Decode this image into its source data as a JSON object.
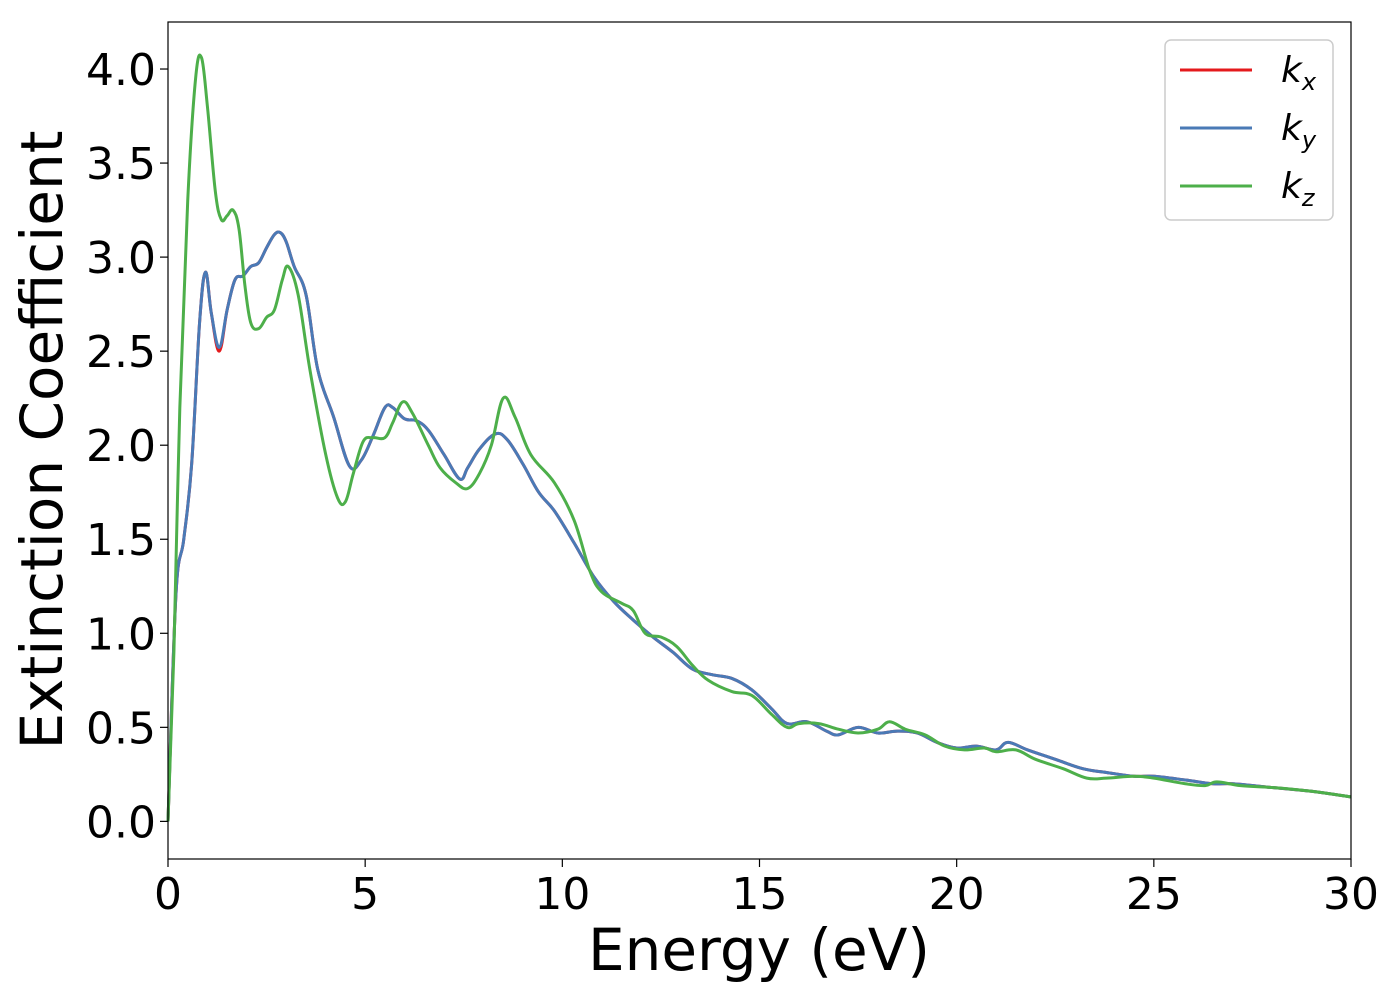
{
  "chart_data": {
    "type": "line",
    "title": "",
    "xlabel": "Energy (eV)",
    "ylabel": "Extinction Coefficient",
    "xlim": [
      0,
      30
    ],
    "ylim": [
      -0.2,
      4.25
    ],
    "xticks": [
      0,
      5,
      10,
      15,
      20,
      25,
      30
    ],
    "xtick_labels": [
      "0",
      "5",
      "10",
      "15",
      "20",
      "25",
      "30"
    ],
    "yticks": [
      0.0,
      0.5,
      1.0,
      1.5,
      2.0,
      2.5,
      3.0,
      3.5,
      4.0
    ],
    "ytick_labels": [
      "0.0",
      "0.5",
      "1.0",
      "1.5",
      "2.0",
      "2.5",
      "3.0",
      "3.5",
      "4.0"
    ],
    "grid": false,
    "legend_position": "top-right",
    "series": [
      {
        "name": "k_x",
        "legend_base": "k",
        "legend_sub": "x",
        "color": "#e41a1c",
        "points": [
          [
            0,
            0
          ],
          [
            0.2,
            1.2
          ],
          [
            0.4,
            1.5
          ],
          [
            0.6,
            1.9
          ],
          [
            0.8,
            2.65
          ],
          [
            0.95,
            2.92
          ],
          [
            1.1,
            2.7
          ],
          [
            1.3,
            2.5
          ],
          [
            1.5,
            2.72
          ],
          [
            1.7,
            2.88
          ],
          [
            1.9,
            2.9
          ],
          [
            2.1,
            2.95
          ],
          [
            2.3,
            2.97
          ],
          [
            2.5,
            3.05
          ],
          [
            2.7,
            3.12
          ],
          [
            2.85,
            3.13
          ],
          [
            3.0,
            3.08
          ],
          [
            3.2,
            2.95
          ],
          [
            3.5,
            2.8
          ],
          [
            3.8,
            2.4
          ],
          [
            4.2,
            2.15
          ],
          [
            4.6,
            1.89
          ],
          [
            4.9,
            1.92
          ],
          [
            5.2,
            2.05
          ],
          [
            5.5,
            2.2
          ],
          [
            5.7,
            2.2
          ],
          [
            6.0,
            2.14
          ],
          [
            6.3,
            2.13
          ],
          [
            6.6,
            2.08
          ],
          [
            7.0,
            1.95
          ],
          [
            7.4,
            1.82
          ],
          [
            7.6,
            1.88
          ],
          [
            7.9,
            1.98
          ],
          [
            8.3,
            2.06
          ],
          [
            8.6,
            2.03
          ],
          [
            9.0,
            1.9
          ],
          [
            9.4,
            1.75
          ],
          [
            9.8,
            1.65
          ],
          [
            10.3,
            1.48
          ],
          [
            10.8,
            1.3
          ],
          [
            11.3,
            1.17
          ],
          [
            11.8,
            1.07
          ],
          [
            12.3,
            0.98
          ],
          [
            12.8,
            0.9
          ],
          [
            13.3,
            0.81
          ],
          [
            13.8,
            0.78
          ],
          [
            14.3,
            0.76
          ],
          [
            14.8,
            0.7
          ],
          [
            15.3,
            0.6
          ],
          [
            15.7,
            0.52
          ],
          [
            16.2,
            0.53
          ],
          [
            16.7,
            0.48
          ],
          [
            17.0,
            0.46
          ],
          [
            17.5,
            0.5
          ],
          [
            18.0,
            0.47
          ],
          [
            18.5,
            0.48
          ],
          [
            19.0,
            0.47
          ],
          [
            19.5,
            0.42
          ],
          [
            20.0,
            0.39
          ],
          [
            20.5,
            0.4
          ],
          [
            21.0,
            0.38
          ],
          [
            21.3,
            0.42
          ],
          [
            21.8,
            0.38
          ],
          [
            22.5,
            0.33
          ],
          [
            23.2,
            0.28
          ],
          [
            23.8,
            0.26
          ],
          [
            24.5,
            0.24
          ],
          [
            25.0,
            0.24
          ],
          [
            25.8,
            0.22
          ],
          [
            26.5,
            0.2
          ],
          [
            27.0,
            0.2
          ],
          [
            28.0,
            0.18
          ],
          [
            29.0,
            0.16
          ],
          [
            30.0,
            0.13
          ]
        ]
      },
      {
        "name": "k_y",
        "legend_base": "k",
        "legend_sub": "y",
        "color": "#4a7ab6",
        "points": [
          [
            0,
            0
          ],
          [
            0.2,
            1.2
          ],
          [
            0.4,
            1.5
          ],
          [
            0.6,
            1.9
          ],
          [
            0.8,
            2.65
          ],
          [
            0.95,
            2.92
          ],
          [
            1.1,
            2.7
          ],
          [
            1.3,
            2.52
          ],
          [
            1.5,
            2.72
          ],
          [
            1.7,
            2.88
          ],
          [
            1.9,
            2.9
          ],
          [
            2.1,
            2.95
          ],
          [
            2.3,
            2.97
          ],
          [
            2.5,
            3.05
          ],
          [
            2.7,
            3.12
          ],
          [
            2.85,
            3.13
          ],
          [
            3.0,
            3.08
          ],
          [
            3.2,
            2.95
          ],
          [
            3.5,
            2.8
          ],
          [
            3.8,
            2.4
          ],
          [
            4.2,
            2.15
          ],
          [
            4.6,
            1.89
          ],
          [
            4.9,
            1.92
          ],
          [
            5.2,
            2.05
          ],
          [
            5.5,
            2.2
          ],
          [
            5.7,
            2.2
          ],
          [
            6.0,
            2.14
          ],
          [
            6.3,
            2.13
          ],
          [
            6.6,
            2.08
          ],
          [
            7.0,
            1.95
          ],
          [
            7.4,
            1.82
          ],
          [
            7.6,
            1.88
          ],
          [
            7.9,
            1.98
          ],
          [
            8.3,
            2.06
          ],
          [
            8.6,
            2.03
          ],
          [
            9.0,
            1.9
          ],
          [
            9.4,
            1.75
          ],
          [
            9.8,
            1.65
          ],
          [
            10.3,
            1.48
          ],
          [
            10.8,
            1.3
          ],
          [
            11.3,
            1.17
          ],
          [
            11.8,
            1.07
          ],
          [
            12.3,
            0.98
          ],
          [
            12.8,
            0.9
          ],
          [
            13.3,
            0.81
          ],
          [
            13.8,
            0.78
          ],
          [
            14.3,
            0.76
          ],
          [
            14.8,
            0.7
          ],
          [
            15.3,
            0.6
          ],
          [
            15.7,
            0.52
          ],
          [
            16.2,
            0.53
          ],
          [
            16.7,
            0.48
          ],
          [
            17.0,
            0.46
          ],
          [
            17.5,
            0.5
          ],
          [
            18.0,
            0.47
          ],
          [
            18.5,
            0.48
          ],
          [
            19.0,
            0.47
          ],
          [
            19.5,
            0.42
          ],
          [
            20.0,
            0.39
          ],
          [
            20.5,
            0.4
          ],
          [
            21.0,
            0.38
          ],
          [
            21.3,
            0.42
          ],
          [
            21.8,
            0.38
          ],
          [
            22.5,
            0.33
          ],
          [
            23.2,
            0.28
          ],
          [
            23.8,
            0.26
          ],
          [
            24.5,
            0.24
          ],
          [
            25.0,
            0.24
          ],
          [
            25.8,
            0.22
          ],
          [
            26.5,
            0.2
          ],
          [
            27.0,
            0.2
          ],
          [
            28.0,
            0.18
          ],
          [
            29.0,
            0.16
          ],
          [
            30.0,
            0.13
          ]
        ]
      },
      {
        "name": "k_z",
        "legend_base": "k",
        "legend_sub": "z",
        "color": "#4daf4a",
        "points": [
          [
            0,
            0
          ],
          [
            0.15,
            0.9
          ],
          [
            0.3,
            2.2
          ],
          [
            0.5,
            3.3
          ],
          [
            0.7,
            3.95
          ],
          [
            0.85,
            4.06
          ],
          [
            1.0,
            3.8
          ],
          [
            1.2,
            3.35
          ],
          [
            1.35,
            3.2
          ],
          [
            1.5,
            3.22
          ],
          [
            1.65,
            3.25
          ],
          [
            1.8,
            3.15
          ],
          [
            1.95,
            2.85
          ],
          [
            2.1,
            2.65
          ],
          [
            2.3,
            2.62
          ],
          [
            2.5,
            2.68
          ],
          [
            2.7,
            2.72
          ],
          [
            2.9,
            2.88
          ],
          [
            3.05,
            2.95
          ],
          [
            3.3,
            2.8
          ],
          [
            3.6,
            2.4
          ],
          [
            4.0,
            1.95
          ],
          [
            4.3,
            1.72
          ],
          [
            4.5,
            1.7
          ],
          [
            4.7,
            1.85
          ],
          [
            4.95,
            2.02
          ],
          [
            5.2,
            2.04
          ],
          [
            5.5,
            2.04
          ],
          [
            5.7,
            2.12
          ],
          [
            5.95,
            2.23
          ],
          [
            6.2,
            2.17
          ],
          [
            6.6,
            2.0
          ],
          [
            6.9,
            1.88
          ],
          [
            7.3,
            1.8
          ],
          [
            7.6,
            1.77
          ],
          [
            7.9,
            1.85
          ],
          [
            8.2,
            2.0
          ],
          [
            8.5,
            2.25
          ],
          [
            8.8,
            2.15
          ],
          [
            9.2,
            1.95
          ],
          [
            9.8,
            1.8
          ],
          [
            10.3,
            1.6
          ],
          [
            10.7,
            1.33
          ],
          [
            11.0,
            1.22
          ],
          [
            11.5,
            1.16
          ],
          [
            11.8,
            1.12
          ],
          [
            12.1,
            1.0
          ],
          [
            12.5,
            0.98
          ],
          [
            12.9,
            0.93
          ],
          [
            13.3,
            0.83
          ],
          [
            13.7,
            0.75
          ],
          [
            14.3,
            0.69
          ],
          [
            14.8,
            0.67
          ],
          [
            15.3,
            0.57
          ],
          [
            15.7,
            0.5
          ],
          [
            16.0,
            0.52
          ],
          [
            16.5,
            0.52
          ],
          [
            17.0,
            0.49
          ],
          [
            17.5,
            0.47
          ],
          [
            18.0,
            0.49
          ],
          [
            18.3,
            0.53
          ],
          [
            18.7,
            0.49
          ],
          [
            19.2,
            0.46
          ],
          [
            19.7,
            0.4
          ],
          [
            20.2,
            0.38
          ],
          [
            20.7,
            0.39
          ],
          [
            21.0,
            0.37
          ],
          [
            21.5,
            0.38
          ],
          [
            22.0,
            0.33
          ],
          [
            22.7,
            0.28
          ],
          [
            23.3,
            0.23
          ],
          [
            23.8,
            0.23
          ],
          [
            24.5,
            0.24
          ],
          [
            25.0,
            0.23
          ],
          [
            25.8,
            0.2
          ],
          [
            26.3,
            0.19
          ],
          [
            26.6,
            0.21
          ],
          [
            27.2,
            0.19
          ],
          [
            28.0,
            0.18
          ],
          [
            29.0,
            0.16
          ],
          [
            30.0,
            0.13
          ]
        ]
      }
    ]
  }
}
